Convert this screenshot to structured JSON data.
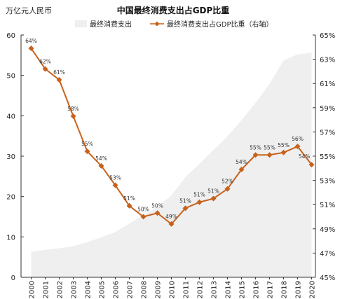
{
  "chart_data": {
    "type": "area+line",
    "title": "中国最终消费支出占GDP比重",
    "left_unit": "万亿元人民币",
    "categories": [
      "2000",
      "2001",
      "2002",
      "2003",
      "2004",
      "2005",
      "2006",
      "2007",
      "2008",
      "2009",
      "2010",
      "2011",
      "2012",
      "2013",
      "2014",
      "2015",
      "2016",
      "2017",
      "2018",
      "2019",
      "2020"
    ],
    "series": [
      {
        "name": "最终消费支出",
        "type": "area",
        "axis": "left",
        "color": "#efefef",
        "values": [
          6.3,
          6.8,
          7.2,
          7.7,
          8.7,
          9.9,
          11.2,
          13.3,
          15.4,
          17.4,
          20.3,
          24.8,
          28.1,
          31.5,
          34.9,
          38.9,
          43.2,
          47.9,
          53.7,
          55.2,
          55.6
        ]
      },
      {
        "name": "最终消费支出占GDP比重（右轴）",
        "type": "line",
        "axis": "right",
        "color": "#c8621b",
        "values": [
          63.9,
          62.2,
          61.3,
          58.3,
          55.4,
          54.2,
          52.6,
          50.9,
          50.0,
          50.3,
          49.4,
          50.7,
          51.2,
          51.5,
          52.3,
          53.9,
          55.1,
          55.1,
          55.3,
          55.8,
          54.3
        ],
        "labels": [
          "64%",
          "62%",
          "61%",
          "58%",
          "55%",
          "54%",
          "53%",
          "51%",
          "50%",
          "50%",
          "49%",
          "51%",
          "51%",
          "51%",
          "52%",
          "54%",
          "55%",
          "55%",
          "55%",
          "56%",
          "54%"
        ]
      }
    ],
    "left_axis": {
      "ylim": [
        0,
        60
      ],
      "ticks": [
        "0",
        "10",
        "20",
        "30",
        "40",
        "50",
        "60"
      ]
    },
    "right_axis": {
      "ylim": [
        45,
        65
      ],
      "ticks": [
        "45%",
        "47%",
        "49%",
        "51%",
        "53%",
        "55%",
        "57%",
        "59%",
        "61%",
        "63%",
        "65%"
      ]
    },
    "legend_placement": "top",
    "grid": false
  }
}
